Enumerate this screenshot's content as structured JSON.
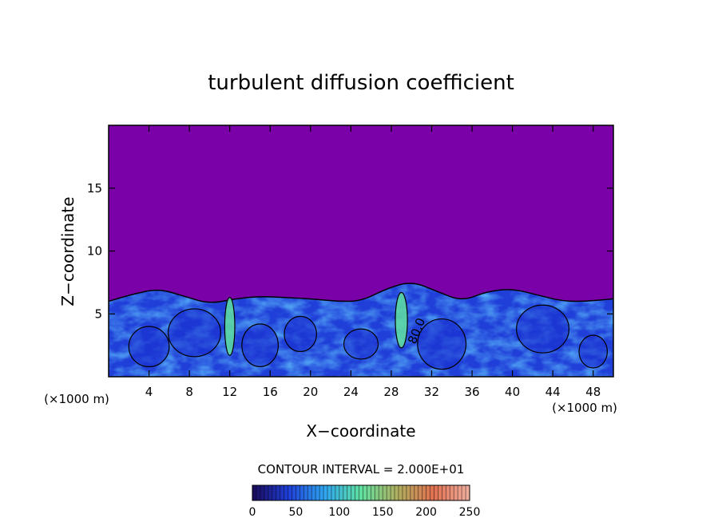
{
  "chart_data": {
    "type": "heatmap",
    "title": "turbulent diffusion coefficient",
    "xlabel": "X−coordinate",
    "ylabel": "Z−coordinate",
    "x_unit": "(×1000 m)",
    "y_unit": "(×1000 m)",
    "xlim": [
      0,
      50
    ],
    "ylim": [
      0,
      20
    ],
    "x_ticks": [
      4,
      8,
      12,
      16,
      20,
      24,
      28,
      32,
      36,
      40,
      44,
      48
    ],
    "y_ticks": [
      5,
      10,
      15
    ],
    "contour_interval_label": "CONTOUR INTERVAL = 2.000E+01",
    "contour_label": "80.0",
    "colorbar": {
      "min": 0,
      "max": 250,
      "ticks": [
        0,
        50,
        100,
        150,
        200,
        250
      ],
      "colors": [
        "#1a0a5a",
        "#1f3fd8",
        "#2fa6f0",
        "#5fe0a0",
        "#b0b060",
        "#e07050",
        "#f0b0a0"
      ]
    },
    "background_color": "#7a00a8",
    "boundary_layer_top_z": [
      6.0,
      6.6,
      7.0,
      6.4,
      5.8,
      6.2,
      6.4,
      6.3,
      6.2,
      6.0,
      6.0,
      7.0,
      7.6,
      6.8,
      6.0,
      6.8,
      7.0,
      6.5,
      6.0,
      6.0,
      6.2
    ]
  }
}
